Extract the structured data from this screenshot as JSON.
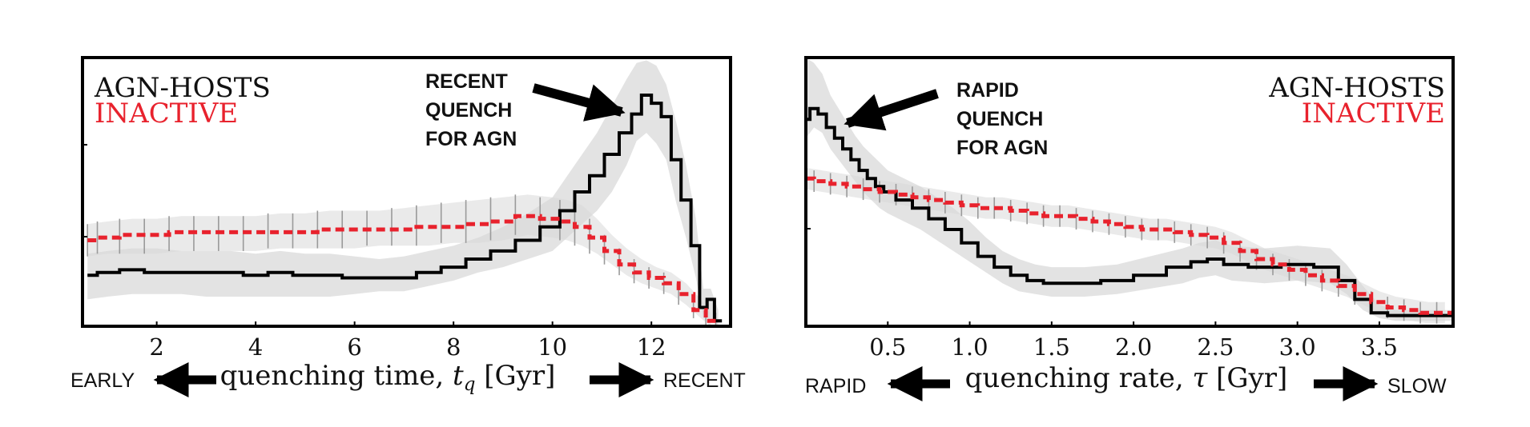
{
  "chart_data": [
    {
      "type": "line",
      "title": "",
      "xlabel": "quenching time, t_q [Gyr]",
      "xlabel_parts": {
        "main": "quenching time, ",
        "sym": "t",
        "sub": "q",
        "unit": " [Gyr]"
      },
      "ylabel": "",
      "xlim": [
        0.5,
        13.6
      ],
      "ylim": [
        0,
        1
      ],
      "xticks": [
        2,
        4,
        6,
        8,
        10,
        12
      ],
      "xtick_labels": [
        "2",
        "4",
        "6",
        "8",
        "10",
        "12"
      ],
      "legend": [
        "AGN-HOSTS",
        "INACTIVE"
      ],
      "legend_position": "top-left",
      "annotation": [
        "RECENT",
        "QUENCH",
        "FOR AGN"
      ],
      "arrow_left": "EARLY",
      "arrow_right": "RECENT",
      "series": [
        {
          "name": "AGN-HOSTS",
          "color": "#000000",
          "style": "solid-step",
          "x": [
            0.6,
            1.0,
            1.5,
            2.0,
            2.5,
            3.0,
            3.5,
            4.0,
            4.5,
            5.0,
            5.5,
            6.0,
            6.5,
            7.0,
            7.5,
            8.0,
            8.5,
            9.0,
            9.5,
            10.0,
            10.3,
            10.6,
            10.9,
            11.2,
            11.5,
            11.7,
            11.9,
            12.1,
            12.3,
            12.5,
            12.7,
            12.9,
            13.05,
            13.2,
            13.35
          ],
          "y": [
            0.19,
            0.2,
            0.21,
            0.2,
            0.2,
            0.2,
            0.2,
            0.19,
            0.2,
            0.19,
            0.19,
            0.18,
            0.18,
            0.18,
            0.2,
            0.22,
            0.25,
            0.28,
            0.32,
            0.37,
            0.43,
            0.5,
            0.56,
            0.64,
            0.72,
            0.79,
            0.86,
            0.83,
            0.78,
            0.62,
            0.47,
            0.3,
            0.07,
            0.1,
            0.02
          ],
          "band": [
            [
              0.1,
              0.27
            ],
            [
              0.11,
              0.28
            ],
            [
              0.12,
              0.29
            ],
            [
              0.12,
              0.29
            ],
            [
              0.12,
              0.28
            ],
            [
              0.11,
              0.28
            ],
            [
              0.11,
              0.28
            ],
            [
              0.11,
              0.27
            ],
            [
              0.11,
              0.28
            ],
            [
              0.11,
              0.27
            ],
            [
              0.11,
              0.27
            ],
            [
              0.12,
              0.26
            ],
            [
              0.13,
              0.25
            ],
            [
              0.13,
              0.26
            ],
            [
              0.15,
              0.28
            ],
            [
              0.17,
              0.3
            ],
            [
              0.2,
              0.33
            ],
            [
              0.22,
              0.37
            ],
            [
              0.25,
              0.42
            ],
            [
              0.28,
              0.48
            ],
            [
              0.33,
              0.56
            ],
            [
              0.38,
              0.64
            ],
            [
              0.43,
              0.72
            ],
            [
              0.5,
              0.82
            ],
            [
              0.6,
              0.92
            ],
            [
              0.69,
              0.98
            ],
            [
              0.72,
              0.99
            ],
            [
              0.68,
              0.97
            ],
            [
              0.62,
              0.9
            ],
            [
              0.46,
              0.76
            ],
            [
              0.33,
              0.6
            ],
            [
              0.18,
              0.4
            ],
            [
              0.03,
              0.14
            ],
            [
              0.03,
              0.14
            ],
            [
              0.0,
              0.06
            ]
          ]
        },
        {
          "name": "INACTIVE",
          "color": "#e8222d",
          "style": "dashed-step",
          "x": [
            0.6,
            1.0,
            1.5,
            2.0,
            2.5,
            3.0,
            3.5,
            4.0,
            4.5,
            5.0,
            5.5,
            6.0,
            6.5,
            7.0,
            7.5,
            8.0,
            8.5,
            9.0,
            9.5,
            10.0,
            10.3,
            10.6,
            10.9,
            11.2,
            11.5,
            11.8,
            12.1,
            12.4,
            12.7,
            13.0,
            13.2
          ],
          "y": [
            0.32,
            0.33,
            0.34,
            0.34,
            0.35,
            0.35,
            0.35,
            0.35,
            0.35,
            0.35,
            0.36,
            0.36,
            0.36,
            0.36,
            0.37,
            0.37,
            0.38,
            0.39,
            0.41,
            0.4,
            0.39,
            0.37,
            0.33,
            0.28,
            0.23,
            0.2,
            0.18,
            0.16,
            0.12,
            0.06,
            0.02
          ],
          "band": [
            [
              0.26,
              0.38
            ],
            [
              0.27,
              0.39
            ],
            [
              0.27,
              0.4
            ],
            [
              0.27,
              0.4
            ],
            [
              0.28,
              0.41
            ],
            [
              0.28,
              0.41
            ],
            [
              0.28,
              0.41
            ],
            [
              0.28,
              0.41
            ],
            [
              0.29,
              0.42
            ],
            [
              0.29,
              0.42
            ],
            [
              0.29,
              0.43
            ],
            [
              0.29,
              0.43
            ],
            [
              0.3,
              0.43
            ],
            [
              0.3,
              0.44
            ],
            [
              0.3,
              0.45
            ],
            [
              0.31,
              0.46
            ],
            [
              0.31,
              0.47
            ],
            [
              0.32,
              0.48
            ],
            [
              0.34,
              0.49
            ],
            [
              0.33,
              0.48
            ],
            [
              0.32,
              0.47
            ],
            [
              0.3,
              0.45
            ],
            [
              0.27,
              0.4
            ],
            [
              0.23,
              0.34
            ],
            [
              0.19,
              0.29
            ],
            [
              0.16,
              0.25
            ],
            [
              0.14,
              0.22
            ],
            [
              0.12,
              0.2
            ],
            [
              0.08,
              0.16
            ],
            [
              0.03,
              0.1
            ],
            [
              0.0,
              0.05
            ]
          ]
        }
      ]
    },
    {
      "type": "line",
      "title": "",
      "xlabel": "quenching rate, τ [Gyr]",
      "xlabel_parts": {
        "main": "quenching rate, ",
        "sym": "τ",
        "sub": "",
        "unit": " [Gyr]"
      },
      "ylabel": "",
      "xlim": [
        0.0,
        3.95
      ],
      "ylim": [
        0,
        1
      ],
      "xticks": [
        0.5,
        1.0,
        1.5,
        2.0,
        2.5,
        3.0,
        3.5
      ],
      "xtick_labels": [
        "0.5",
        "1.0",
        "1.5",
        "2.0",
        "2.5",
        "3.0",
        "3.5"
      ],
      "legend": [
        "AGN-HOSTS",
        "INACTIVE"
      ],
      "legend_position": "top-right",
      "annotation": [
        "RAPID",
        "QUENCH",
        "FOR AGN"
      ],
      "arrow_left": "RAPID",
      "arrow_right": "SLOW",
      "series": [
        {
          "name": "AGN-HOSTS",
          "color": "#000000",
          "style": "solid-step",
          "x": [
            0.0,
            0.05,
            0.1,
            0.15,
            0.2,
            0.25,
            0.3,
            0.35,
            0.4,
            0.45,
            0.5,
            0.6,
            0.7,
            0.8,
            0.9,
            1.0,
            1.1,
            1.2,
            1.3,
            1.4,
            1.5,
            1.7,
            1.9,
            2.1,
            2.3,
            2.4,
            2.5,
            2.6,
            2.8,
            3.0,
            3.2,
            3.3,
            3.4,
            3.5,
            3.6,
            3.8,
            3.95
          ],
          "y": [
            0.77,
            0.81,
            0.79,
            0.74,
            0.7,
            0.66,
            0.62,
            0.58,
            0.55,
            0.52,
            0.5,
            0.47,
            0.44,
            0.4,
            0.36,
            0.31,
            0.26,
            0.22,
            0.19,
            0.17,
            0.16,
            0.16,
            0.17,
            0.19,
            0.22,
            0.24,
            0.25,
            0.23,
            0.22,
            0.23,
            0.22,
            0.17,
            0.1,
            0.05,
            0.04,
            0.04,
            0.04
          ],
          "band": [
            [
              0.7,
              1.0
            ],
            [
              0.74,
              0.98
            ],
            [
              0.72,
              0.94
            ],
            [
              0.66,
              0.86
            ],
            [
              0.62,
              0.81
            ],
            [
              0.58,
              0.76
            ],
            [
              0.54,
              0.71
            ],
            [
              0.5,
              0.67
            ],
            [
              0.47,
              0.64
            ],
            [
              0.44,
              0.61
            ],
            [
              0.42,
              0.58
            ],
            [
              0.39,
              0.55
            ],
            [
              0.36,
              0.52
            ],
            [
              0.32,
              0.48
            ],
            [
              0.28,
              0.44
            ],
            [
              0.24,
              0.39
            ],
            [
              0.2,
              0.33
            ],
            [
              0.16,
              0.28
            ],
            [
              0.13,
              0.25
            ],
            [
              0.12,
              0.23
            ],
            [
              0.11,
              0.22
            ],
            [
              0.11,
              0.22
            ],
            [
              0.12,
              0.23
            ],
            [
              0.14,
              0.26
            ],
            [
              0.16,
              0.29
            ],
            [
              0.18,
              0.31
            ],
            [
              0.19,
              0.32
            ],
            [
              0.17,
              0.3
            ],
            [
              0.16,
              0.29
            ],
            [
              0.17,
              0.3
            ],
            [
              0.16,
              0.29
            ],
            [
              0.12,
              0.23
            ],
            [
              0.06,
              0.15
            ],
            [
              0.03,
              0.08
            ],
            [
              0.02,
              0.06
            ],
            [
              0.02,
              0.06
            ],
            [
              0.02,
              0.06
            ]
          ]
        },
        {
          "name": "INACTIVE",
          "color": "#e8222d",
          "style": "dashed-step",
          "x": [
            0.0,
            0.1,
            0.2,
            0.3,
            0.4,
            0.5,
            0.6,
            0.7,
            0.8,
            0.9,
            1.0,
            1.1,
            1.2,
            1.3,
            1.4,
            1.5,
            1.6,
            1.7,
            1.8,
            1.9,
            2.0,
            2.1,
            2.2,
            2.3,
            2.4,
            2.5,
            2.6,
            2.7,
            2.8,
            2.9,
            3.0,
            3.1,
            3.2,
            3.3,
            3.4,
            3.5,
            3.6,
            3.7,
            3.8,
            3.9
          ],
          "y": [
            0.55,
            0.54,
            0.53,
            0.52,
            0.51,
            0.5,
            0.49,
            0.48,
            0.47,
            0.46,
            0.45,
            0.44,
            0.44,
            0.43,
            0.42,
            0.41,
            0.41,
            0.4,
            0.39,
            0.38,
            0.37,
            0.36,
            0.36,
            0.35,
            0.34,
            0.33,
            0.31,
            0.28,
            0.25,
            0.23,
            0.21,
            0.19,
            0.17,
            0.15,
            0.12,
            0.09,
            0.07,
            0.06,
            0.05,
            0.05
          ],
          "band": [
            [
              0.51,
              0.59
            ],
            [
              0.5,
              0.58
            ],
            [
              0.49,
              0.57
            ],
            [
              0.48,
              0.56
            ],
            [
              0.47,
              0.55
            ],
            [
              0.46,
              0.54
            ],
            [
              0.45,
              0.53
            ],
            [
              0.44,
              0.52
            ],
            [
              0.43,
              0.51
            ],
            [
              0.42,
              0.5
            ],
            [
              0.41,
              0.49
            ],
            [
              0.4,
              0.48
            ],
            [
              0.4,
              0.48
            ],
            [
              0.39,
              0.47
            ],
            [
              0.38,
              0.46
            ],
            [
              0.37,
              0.45
            ],
            [
              0.37,
              0.45
            ],
            [
              0.36,
              0.44
            ],
            [
              0.35,
              0.43
            ],
            [
              0.34,
              0.42
            ],
            [
              0.33,
              0.41
            ],
            [
              0.32,
              0.4
            ],
            [
              0.32,
              0.4
            ],
            [
              0.31,
              0.39
            ],
            [
              0.3,
              0.38
            ],
            [
              0.29,
              0.37
            ],
            [
              0.27,
              0.35
            ],
            [
              0.24,
              0.32
            ],
            [
              0.21,
              0.29
            ],
            [
              0.19,
              0.27
            ],
            [
              0.17,
              0.25
            ],
            [
              0.15,
              0.23
            ],
            [
              0.13,
              0.21
            ],
            [
              0.11,
              0.19
            ],
            [
              0.08,
              0.16
            ],
            [
              0.05,
              0.13
            ],
            [
              0.03,
              0.11
            ],
            [
              0.02,
              0.1
            ],
            [
              0.01,
              0.09
            ],
            [
              0.01,
              0.09
            ]
          ]
        }
      ]
    }
  ]
}
